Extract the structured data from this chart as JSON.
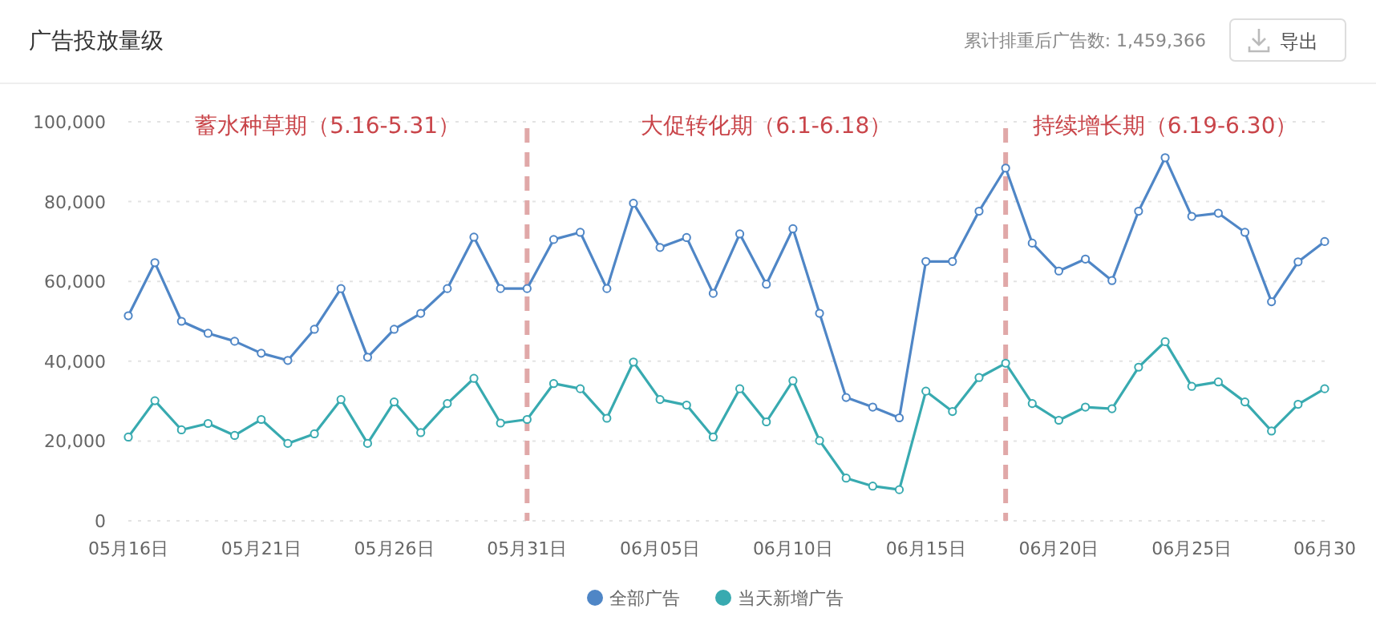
{
  "chart_data": {
    "type": "line",
    "title": "广告投放量级",
    "subtitle": "累计排重后广告数: 1,459,366",
    "annotations": [
      "蓄水种草期（5.16-5.31）",
      "大促转化期（6.1-6.18）",
      "持续增长期（6.19-6.30）",
      "导出"
    ],
    "x": [
      "--05-16",
      "--05-17",
      "--05-18",
      "--05-19",
      "--05-20",
      "--05-21",
      "--05-22",
      "--05-23",
      "--05-24",
      "--05-25",
      "--05-26",
      "--05-27",
      "--05-28",
      "--05-29",
      "--05-30",
      "--05-31",
      "--06-01",
      "--06-02",
      "--06-03",
      "--06-04",
      "--06-05",
      "--06-06",
      "--06-07",
      "--06-08",
      "--06-09",
      "--06-10",
      "--06-11",
      "--06-12",
      "--06-13",
      "--06-14",
      "--06-15",
      "--06-16",
      "--06-17",
      "--06-18",
      "--06-19",
      "--06-20",
      "--06-21",
      "--06-22",
      "--06-23",
      "--06-24",
      "--06-25",
      "--06-26",
      "--06-27",
      "--06-28",
      "--06-29",
      "--06-30"
    ],
    "series": [
      {
        "name": "全部广告",
        "color": "#4f86c6",
        "values": [
          51400,
          64700,
          50000,
          47000,
          45000,
          42000,
          40200,
          48000,
          58200,
          41000,
          48000,
          52000,
          58200,
          71100,
          58200,
          58200,
          70500,
          72300,
          58200,
          79600,
          68500,
          71000,
          57000,
          71900,
          59300,
          73200,
          52000,
          30900,
          28500,
          25800,
          65000,
          65000,
          77600,
          88400,
          69600,
          62600,
          65600,
          60200,
          77600,
          91000,
          76300,
          77100,
          72300,
          54900,
          64900,
          70000
        ]
      },
      {
        "name": "当天新增广告",
        "color": "#38aab0",
        "values": [
          21000,
          30100,
          22800,
          24400,
          21400,
          25400,
          19400,
          21800,
          30400,
          19400,
          29800,
          22100,
          29400,
          35700,
          24500,
          25400,
          34400,
          33100,
          25700,
          39800,
          30400,
          29000,
          21000,
          33100,
          24800,
          35100,
          20100,
          10700,
          8700,
          7800,
          32500,
          27400,
          35900,
          39500,
          29400,
          25200,
          28500,
          28100,
          38500,
          44900,
          33700,
          34800,
          29800,
          22500,
          29200,
          33100
        ]
      }
    ],
    "xlim": [
      "--05-16",
      "--06-30"
    ],
    "xticks": [
      {
        "value": "--05-16",
        "label": "05月16日"
      },
      {
        "value": "--05-21",
        "label": "05月21日"
      },
      {
        "value": "--05-26",
        "label": "05月26日"
      },
      {
        "value": "--05-31",
        "label": "05月31日"
      },
      {
        "value": "--06-05",
        "label": "06月05日"
      },
      {
        "value": "--06-10",
        "label": "06月10日"
      },
      {
        "value": "--06-15",
        "label": "06月15日"
      },
      {
        "value": "--06-20",
        "label": "06月20日"
      },
      {
        "value": "--06-25",
        "label": "06月25日"
      },
      {
        "value": "--06-30",
        "label": "06月30"
      }
    ],
    "ylim": [
      0,
      100000
    ],
    "yticks": [
      0,
      {
        "value": 20000,
        "label": "20,000"
      },
      {
        "value": 40000,
        "label": "40,000"
      },
      {
        "value": 60000,
        "label": "60,000"
      },
      {
        "value": 80000,
        "label": "80,000"
      },
      {
        "value": 100000,
        "label": "100,000"
      }
    ],
    "ref_lines": [
      {
        "axis": "x",
        "value": "--05-31",
        "color": "#e0a8a8",
        "line_style": "dashed"
      },
      {
        "axis": "x",
        "value": "--06-18",
        "color": "#e0a8a8",
        "line_style": "dashed"
      }
    ],
    "grid": "y",
    "legend": "bottom",
    "marker": "circle",
    "line_style": "solid"
  }
}
